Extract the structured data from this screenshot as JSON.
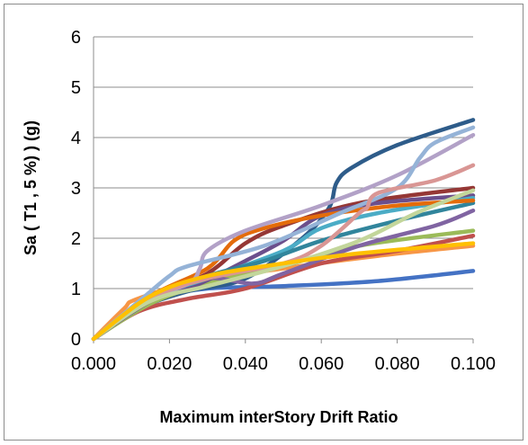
{
  "chart_data": {
    "type": "line",
    "title": "",
    "xlabel": "Maximum interStory Drift Ratio",
    "ylabel": "Sa ( T1 , 5 %) ) (g)",
    "xlim": [
      0,
      0.1
    ],
    "ylim": [
      0,
      6
    ],
    "x_ticks": [
      "0.000",
      "0.020",
      "0.040",
      "0.060",
      "0.080",
      "0.100"
    ],
    "y_ticks": [
      "0",
      "1",
      "2",
      "3",
      "4",
      "5",
      "6"
    ],
    "grid": "horizontal",
    "legend": "none",
    "series": [
      {
        "color": "#4472c4",
        "points": [
          [
            0,
            0
          ],
          [
            0.01,
            0.5
          ],
          [
            0.02,
            0.85
          ],
          [
            0.03,
            1.0
          ],
          [
            0.05,
            1.05
          ],
          [
            0.075,
            1.15
          ],
          [
            0.1,
            1.35
          ]
        ]
      },
      {
        "color": "#2e5c8a",
        "points": [
          [
            0,
            0
          ],
          [
            0.012,
            0.6
          ],
          [
            0.025,
            0.95
          ],
          [
            0.04,
            1.2
          ],
          [
            0.055,
            2.0
          ],
          [
            0.062,
            2.6
          ],
          [
            0.064,
            3.1
          ],
          [
            0.068,
            3.4
          ],
          [
            0.08,
            3.85
          ],
          [
            0.1,
            4.35
          ]
        ]
      },
      {
        "color": "#f79646",
        "points": [
          [
            0,
            0
          ],
          [
            0.008,
            0.6
          ],
          [
            0.011,
            0.78
          ],
          [
            0.025,
            1.1
          ],
          [
            0.05,
            1.4
          ],
          [
            0.075,
            1.65
          ],
          [
            0.1,
            1.85
          ]
        ]
      },
      {
        "color": "#c0504d",
        "points": [
          [
            0,
            0
          ],
          [
            0.012,
            0.55
          ],
          [
            0.025,
            0.8
          ],
          [
            0.04,
            1.0
          ],
          [
            0.06,
            1.5
          ],
          [
            0.08,
            1.75
          ],
          [
            0.1,
            2.05
          ]
        ]
      },
      {
        "color": "#953735",
        "points": [
          [
            0,
            0
          ],
          [
            0.015,
            0.8
          ],
          [
            0.03,
            1.3
          ],
          [
            0.04,
            1.9
          ],
          [
            0.05,
            2.25
          ],
          [
            0.07,
            2.7
          ],
          [
            0.1,
            3.0
          ]
        ]
      },
      {
        "color": "#9bbb59",
        "points": [
          [
            0,
            0
          ],
          [
            0.015,
            0.7
          ],
          [
            0.03,
            1.1
          ],
          [
            0.05,
            1.45
          ],
          [
            0.07,
            1.85
          ],
          [
            0.1,
            2.15
          ]
        ]
      },
      {
        "color": "#8064a2",
        "points": [
          [
            0,
            0
          ],
          [
            0.015,
            0.85
          ],
          [
            0.03,
            1.2
          ],
          [
            0.042,
            1.1
          ],
          [
            0.05,
            1.3
          ],
          [
            0.07,
            1.85
          ],
          [
            0.09,
            2.25
          ],
          [
            0.1,
            2.55
          ]
        ]
      },
      {
        "color": "#6b4f8c",
        "points": [
          [
            0,
            0
          ],
          [
            0.015,
            0.75
          ],
          [
            0.028,
            1.1
          ],
          [
            0.04,
            1.55
          ],
          [
            0.05,
            1.95
          ],
          [
            0.06,
            2.45
          ],
          [
            0.075,
            2.7
          ],
          [
            0.1,
            2.85
          ]
        ]
      },
      {
        "color": "#4bacc6",
        "points": [
          [
            0,
            0
          ],
          [
            0.015,
            0.8
          ],
          [
            0.03,
            1.2
          ],
          [
            0.05,
            1.75
          ],
          [
            0.06,
            2.2
          ],
          [
            0.075,
            2.5
          ],
          [
            0.1,
            2.8
          ]
        ]
      },
      {
        "color": "#31859c",
        "points": [
          [
            0,
            0
          ],
          [
            0.015,
            0.8
          ],
          [
            0.03,
            1.25
          ],
          [
            0.045,
            1.55
          ],
          [
            0.06,
            1.95
          ],
          [
            0.08,
            2.35
          ],
          [
            0.1,
            2.7
          ]
        ]
      },
      {
        "color": "#e46c0a",
        "points": [
          [
            0,
            0
          ],
          [
            0.015,
            0.85
          ],
          [
            0.03,
            1.4
          ],
          [
            0.037,
            1.95
          ],
          [
            0.045,
            2.2
          ],
          [
            0.06,
            2.45
          ],
          [
            0.08,
            2.65
          ],
          [
            0.1,
            2.75
          ]
        ]
      },
      {
        "color": "#b2a1c7",
        "points": [
          [
            0,
            0
          ],
          [
            0.012,
            0.7
          ],
          [
            0.025,
            1.1
          ],
          [
            0.028,
            1.4
          ],
          [
            0.03,
            1.75
          ],
          [
            0.04,
            2.15
          ],
          [
            0.06,
            2.65
          ],
          [
            0.08,
            3.25
          ],
          [
            0.1,
            4.05
          ]
        ]
      },
      {
        "color": "#95b3d7",
        "points": [
          [
            0,
            0
          ],
          [
            0.012,
            0.75
          ],
          [
            0.02,
            1.25
          ],
          [
            0.025,
            1.45
          ],
          [
            0.045,
            1.85
          ],
          [
            0.065,
            2.5
          ],
          [
            0.08,
            3.0
          ],
          [
            0.086,
            3.6
          ],
          [
            0.09,
            3.9
          ],
          [
            0.1,
            4.2
          ]
        ]
      },
      {
        "color": "#d99694",
        "points": [
          [
            0,
            0
          ],
          [
            0.015,
            0.8
          ],
          [
            0.03,
            1.2
          ],
          [
            0.05,
            1.5
          ],
          [
            0.06,
            1.85
          ],
          [
            0.07,
            2.5
          ],
          [
            0.072,
            2.6
          ],
          [
            0.075,
            2.9
          ],
          [
            0.09,
            3.15
          ],
          [
            0.1,
            3.45
          ]
        ]
      },
      {
        "color": "#c3d69b",
        "points": [
          [
            0,
            0
          ],
          [
            0.015,
            0.75
          ],
          [
            0.03,
            1.05
          ],
          [
            0.05,
            1.45
          ],
          [
            0.07,
            1.95
          ],
          [
            0.085,
            2.5
          ],
          [
            0.1,
            2.95
          ]
        ]
      },
      {
        "color": "#ffc000",
        "points": [
          [
            0,
            0
          ],
          [
            0.015,
            0.85
          ],
          [
            0.03,
            1.25
          ],
          [
            0.05,
            1.5
          ],
          [
            0.07,
            1.7
          ],
          [
            0.1,
            1.9
          ]
        ]
      }
    ]
  }
}
